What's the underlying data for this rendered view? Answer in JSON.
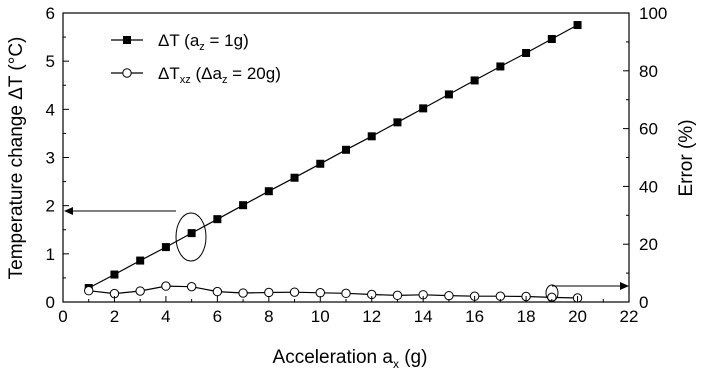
{
  "chart_data": {
    "type": "line",
    "xlabel": "Acceleration a",
    "xlabel_sub": "x",
    "xlabel_unit": " (g)",
    "ylabel": "Temperature change ΔT (°C)",
    "ylabel_right": "Error (%)",
    "xlim": [
      0,
      22
    ],
    "ylim": [
      0,
      6
    ],
    "ylim_right": [
      0,
      100
    ],
    "xticks": [
      "0",
      "2",
      "4",
      "6",
      "8",
      "10",
      "12",
      "14",
      "16",
      "18",
      "20",
      "22"
    ],
    "yticks": [
      "0",
      "1",
      "2",
      "3",
      "4",
      "5",
      "6"
    ],
    "yticks_right": [
      "0",
      "20",
      "40",
      "60",
      "80",
      "100"
    ],
    "grid": false,
    "legend_position": "top-left",
    "series": [
      {
        "name": "ΔT (a_z = 1g)",
        "legend_parts": [
          "ΔT (a",
          "z",
          " = 1g)"
        ],
        "marker": "filled-square",
        "axis": "left",
        "x": [
          1,
          2,
          3,
          4,
          5,
          6,
          7,
          8,
          9,
          10,
          11,
          12,
          13,
          14,
          15,
          16,
          17,
          18,
          19,
          20
        ],
        "y": [
          0.29,
          0.57,
          0.86,
          1.14,
          1.43,
          1.72,
          2.01,
          2.3,
          2.58,
          2.87,
          3.16,
          3.44,
          3.73,
          4.02,
          4.31,
          4.6,
          4.89,
          5.17,
          5.46,
          5.75
        ]
      },
      {
        "name": "ΔT_xz (Δa_z = 20g)",
        "legend_parts": [
          "ΔT",
          "xz",
          " (Δa",
          "z",
          " = 20g)"
        ],
        "marker": "open-circle",
        "axis": "right",
        "x": [
          1,
          2,
          3,
          4,
          5,
          6,
          7,
          8,
          9,
          10,
          11,
          12,
          13,
          14,
          15,
          16,
          17,
          18,
          19,
          20
        ],
        "y": [
          3.9,
          2.9,
          3.8,
          5.5,
          5.3,
          3.6,
          3.1,
          3.3,
          3.4,
          3.2,
          3.0,
          2.6,
          2.3,
          2.5,
          2.2,
          2.0,
          2.0,
          1.9,
          1.6,
          1.4
        ]
      }
    ]
  }
}
